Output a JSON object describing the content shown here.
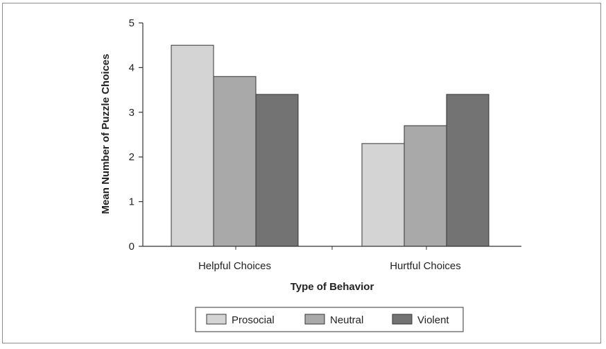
{
  "chart_data": {
    "type": "bar",
    "title": "",
    "xlabel": "Type of Behavior",
    "ylabel": "Mean Number of Puzzle Choices",
    "categories": [
      "Helpful Choices",
      "Hurtful Choices"
    ],
    "series": [
      {
        "name": "Prosocial",
        "values": [
          4.5,
          2.3
        ],
        "color": "#d4d4d4"
      },
      {
        "name": "Neutral",
        "values": [
          3.8,
          2.7
        ],
        "color": "#a9a9a9"
      },
      {
        "name": "Violent",
        "values": [
          3.4,
          3.4
        ],
        "color": "#737373"
      }
    ],
    "ylim": [
      0,
      5
    ],
    "yticks": [
      "0",
      "1",
      "2",
      "3",
      "4",
      "5"
    ],
    "grid": false,
    "legend_position": "bottom"
  }
}
